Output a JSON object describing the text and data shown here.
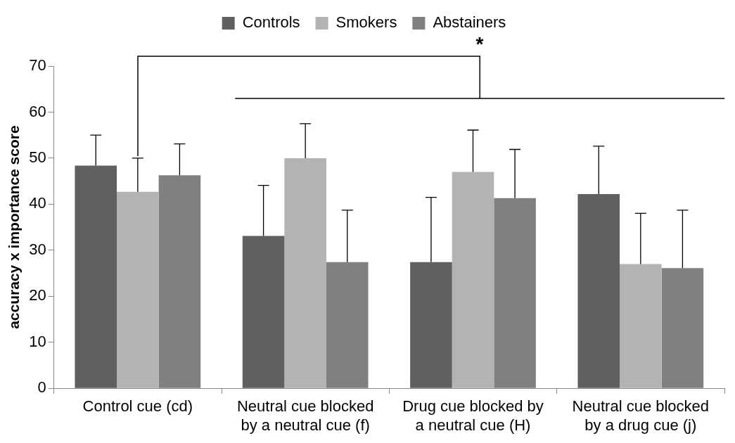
{
  "chart_data": {
    "type": "bar",
    "ylabel": "accuracy x importance score",
    "categories": [
      "Control cue (cd)",
      "Neutral cue blocked by a neutral cue (f)",
      "Drug cue blocked by a neutral cue (H)",
      "Neutral cue blocked by a drug cue (j)"
    ],
    "series": [
      {
        "name": "Controls",
        "color": "#606060",
        "values": [
          48.4,
          33.1,
          27.4,
          42.2
        ],
        "errors": [
          [
            48.4,
            55
          ],
          [
            33.1,
            44.1
          ],
          [
            27.4,
            41.5
          ],
          [
            42.2,
            52.6
          ]
        ]
      },
      {
        "name": "Smokers",
        "color": "#b3b3b3",
        "values": [
          42.7,
          50,
          47,
          27
        ],
        "errors": [
          [
            42.7,
            50
          ],
          [
            50,
            57.5
          ],
          [
            47,
            56.1
          ],
          [
            27,
            38
          ]
        ]
      },
      {
        "name": "Abstainers",
        "color": "#808080",
        "values": [
          46.3,
          27.4,
          41.3,
          26.1
        ],
        "errors": [
          [
            46.3,
            53.1
          ],
          [
            27.4,
            38.7
          ],
          [
            41.3,
            51.9
          ],
          [
            26.1,
            38.7
          ]
        ]
      }
    ],
    "ylim": [
      0,
      70
    ],
    "yticks": [
      0,
      10,
      20,
      30,
      40,
      50,
      60,
      70
    ],
    "grid": false,
    "legend": "top",
    "annotations": [
      "*"
    ]
  }
}
